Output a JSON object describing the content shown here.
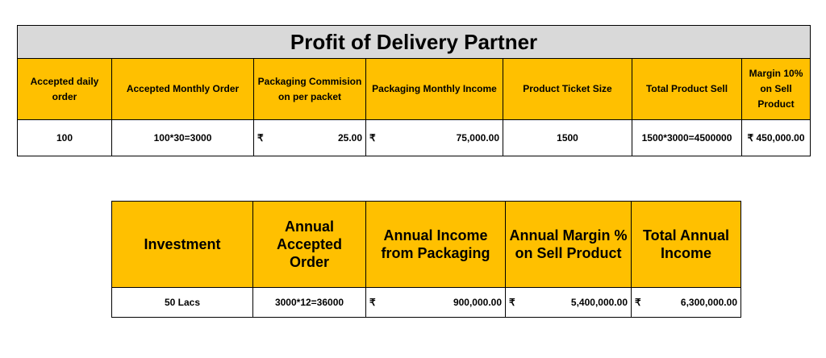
{
  "title": "Profit of Delivery Partner",
  "table1": {
    "headers": [
      "Accepted daily order",
      "Accepted Monthly Order",
      "Packaging Commision on per packet",
      "Packaging Monthly Income",
      "Product Ticket Size",
      "Total Product Sell",
      "Margin 10% on Sell Product"
    ],
    "row": {
      "daily": "100",
      "monthly": "100*30=3000",
      "commission_symbol": "₹",
      "commission": "25.00",
      "monthly_income_symbol": "₹",
      "monthly_income": "75,000.00",
      "ticket_size": "1500",
      "total_sell": "1500*3000=4500000",
      "margin": "₹ 450,000.00"
    }
  },
  "table2": {
    "headers": [
      "Investment",
      "Annual Accepted Order",
      "Annual Income from Packaging",
      "Annual Margin % on Sell Product",
      "Total Annual Income"
    ],
    "row": {
      "investment": "50 Lacs",
      "annual_order": "3000*12=36000",
      "packaging_income_symbol": "₹",
      "packaging_income": "900,000.00",
      "margin_symbol": "₹",
      "margin": "5,400,000.00",
      "total_symbol": "₹",
      "total": "6,300,000.00"
    }
  }
}
